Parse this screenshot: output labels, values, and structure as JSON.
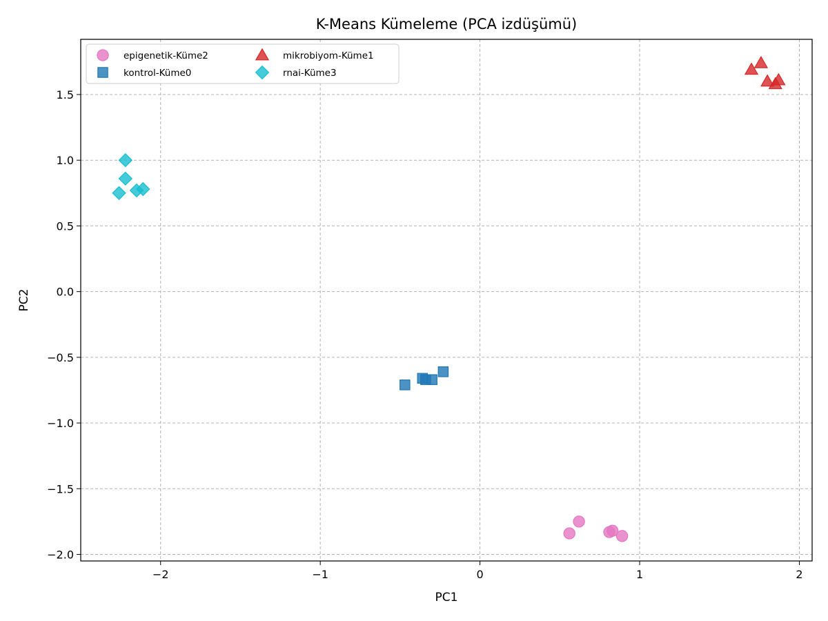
{
  "chart_data": {
    "type": "scatter",
    "title": "K-Means Kümeleme (PCA izdüşümü)",
    "xlabel": "PC1",
    "ylabel": "PC2",
    "xlim": [
      -2.5,
      2.08
    ],
    "ylim": [
      -2.05,
      1.92
    ],
    "xticks": [
      -2,
      -1,
      0,
      1,
      2
    ],
    "yticks": [
      -2.0,
      -1.5,
      -1.0,
      -0.5,
      0.0,
      0.5,
      1.0,
      1.5
    ],
    "xtick_labels": [
      "−2",
      "−1",
      "0",
      "1",
      "2"
    ],
    "ytick_labels": [
      "−2.0",
      "−1.5",
      "−1.0",
      "−0.5",
      "0.0",
      "0.5",
      "1.0",
      "1.5"
    ],
    "grid": true,
    "legend_position": "upper-left",
    "series": [
      {
        "name": "epigenetik-Küme2",
        "marker": "circle",
        "color": "#e377c2",
        "points": [
          [
            0.56,
            -1.84
          ],
          [
            0.62,
            -1.75
          ],
          [
            0.81,
            -1.83
          ],
          [
            0.83,
            -1.82
          ],
          [
            0.89,
            -1.86
          ]
        ]
      },
      {
        "name": "kontrol-Küme0",
        "marker": "square",
        "color": "#1f77b4",
        "points": [
          [
            -0.47,
            -0.71
          ],
          [
            -0.36,
            -0.66
          ],
          [
            -0.34,
            -0.67
          ],
          [
            -0.3,
            -0.67
          ],
          [
            -0.23,
            -0.61
          ]
        ]
      },
      {
        "name": "mikrobiyom-Küme1",
        "marker": "triangle",
        "color": "#d62728",
        "points": [
          [
            1.7,
            1.69
          ],
          [
            1.76,
            1.74
          ],
          [
            1.8,
            1.6
          ],
          [
            1.85,
            1.58
          ],
          [
            1.87,
            1.61
          ]
        ]
      },
      {
        "name": "rnai-Küme3",
        "marker": "diamond",
        "color": "#17becf",
        "points": [
          [
            -2.26,
            0.75
          ],
          [
            -2.22,
            1.0
          ],
          [
            -2.22,
            0.86
          ],
          [
            -2.15,
            0.77
          ],
          [
            -2.11,
            0.78
          ]
        ]
      }
    ]
  }
}
